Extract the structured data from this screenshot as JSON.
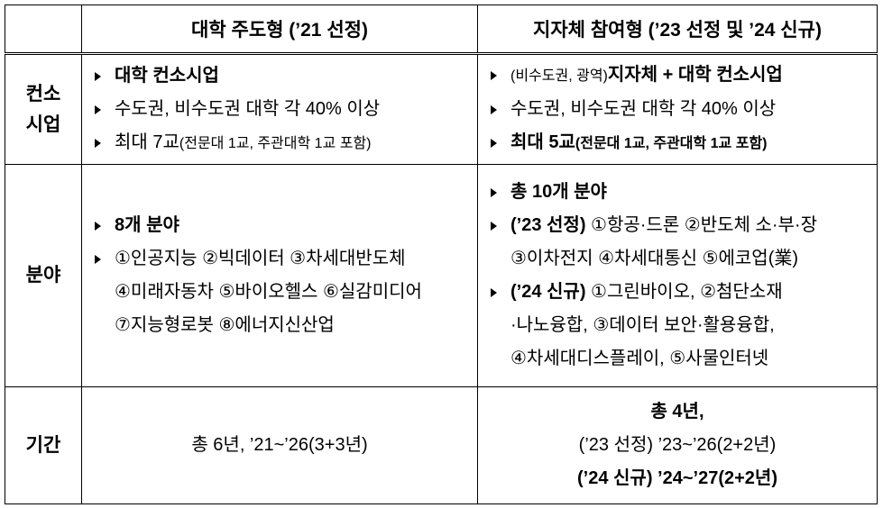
{
  "header": {
    "col1": "대학 주도형 (’21 선정)",
    "col2": "지자체 참여형 (’23 선정 및 ’24 신규)"
  },
  "rows": [
    {
      "label": [
        "컨소",
        "시업"
      ],
      "col1": [
        {
          "bold": "대학 컨소시업"
        },
        {
          "text": "수도권, 비수도권 대학 각 40% 이상"
        },
        {
          "text": "최대 7교",
          "small": "(전문대 1교, 주관대학 1교 포함)"
        }
      ],
      "col2": [
        {
          "small": "(비수도권, 광역)",
          "bold": "지자체 + 대학 컨소시업"
        },
        {
          "text": "수도권, 비수도권 대학 각 40% 이상"
        },
        {
          "bold": "최대 5교",
          "boldsmall": "(전문대 1교, 주관대학 1교 포함)"
        }
      ]
    },
    {
      "label": [
        "분야"
      ],
      "col1": [
        {
          "bold": "8개 분야"
        },
        {
          "lines": [
            "①인공지능 ②빅데이터 ③차세대반도체",
            "④미래자동차 ⑤바이오헬스 ⑥실감미디어",
            "⑦지능형로봇 ⑧에너지신산업"
          ]
        }
      ],
      "col2": [
        {
          "bold": "총 10개 분야"
        },
        {
          "bold": "(’23 선정)",
          "lines": [
            " ①항공·드론 ②반도체 소·부·장",
            "③이차전지 ④차세대통신 ⑤에코업(業)"
          ]
        },
        {
          "bold": "(’24 신규)",
          "lines": [
            " ①그린바이오, ②첨단소재",
            "·나노융합, ③데이터 보안·활용융합,",
            "④차세대디스플레이, ⑤사물인터넷"
          ]
        }
      ]
    },
    {
      "label": [
        "기간"
      ],
      "col1": [
        "총 6년, ’21~’26(3+3년)"
      ],
      "col2": [
        "총 4년,",
        "(’23 선정) ’23~’26(2+2년)",
        "(’24 신규) ’24~’27(2+2년)"
      ]
    }
  ]
}
